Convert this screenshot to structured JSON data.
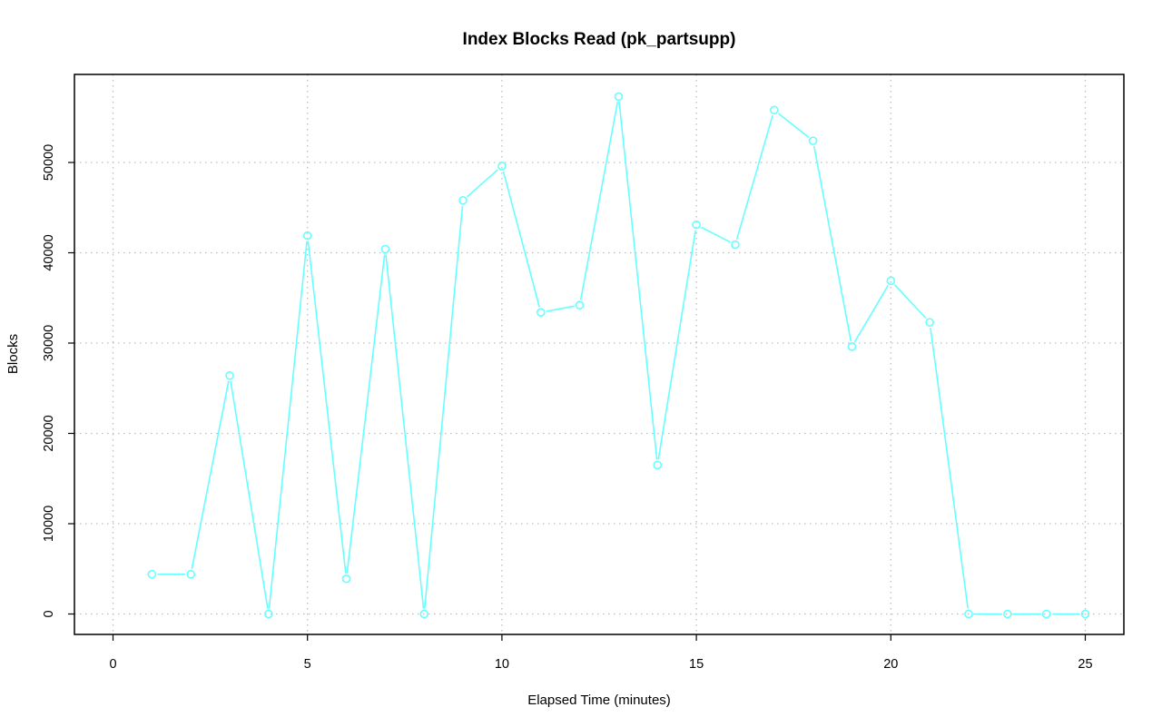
{
  "chart_data": {
    "type": "line",
    "title": "Index Blocks Read (pk_partsupp)",
    "xlabel": "Elapsed Time (minutes)",
    "ylabel": "Blocks",
    "xlim": [
      0,
      25
    ],
    "ylim": [
      0,
      57500
    ],
    "x_ticks": [
      0,
      5,
      10,
      15,
      20,
      25
    ],
    "y_ticks": [
      0,
      10000,
      20000,
      30000,
      40000,
      50000
    ],
    "grid": true,
    "legend": "none",
    "series": [
      {
        "color": "#66ffff",
        "marker": "open-circle",
        "x": [
          1,
          2,
          3,
          4,
          5,
          6,
          7,
          8,
          9,
          10,
          11,
          12,
          13,
          14,
          15,
          16,
          17,
          18,
          19,
          20,
          21,
          22,
          23,
          24,
          25
        ],
        "y": [
          4400,
          4400,
          26400,
          0,
          41900,
          3900,
          40400,
          0,
          45800,
          49600,
          33400,
          34200,
          57300,
          16500,
          43100,
          40900,
          55800,
          52400,
          29600,
          36900,
          32300,
          0,
          0,
          0,
          0
        ]
      }
    ]
  },
  "colors": {
    "series": "#66ffff",
    "grid": "#bebebe",
    "axis": "#000000",
    "background": "#ffffff"
  }
}
